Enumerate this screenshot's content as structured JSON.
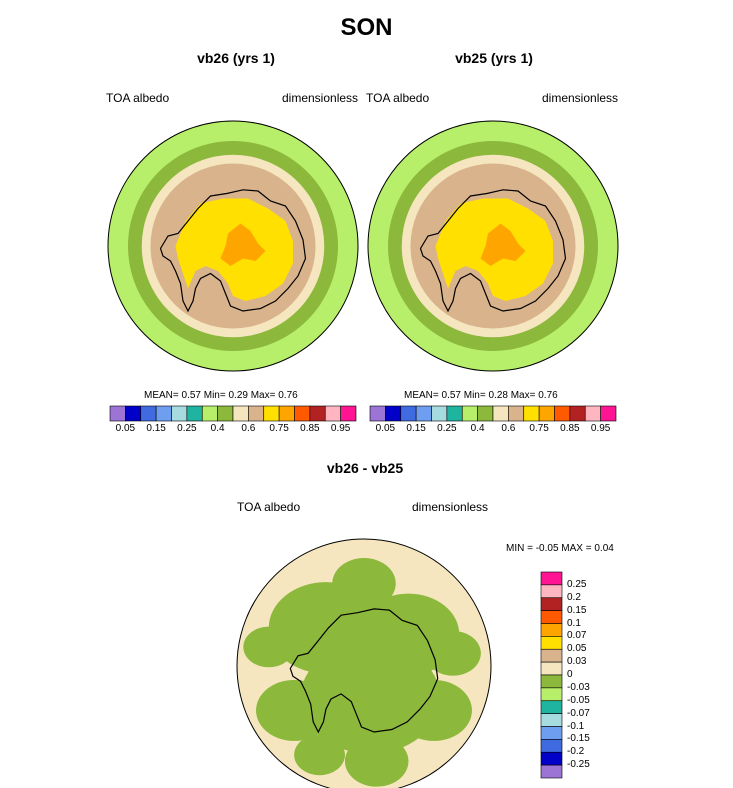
{
  "chart_data": [
    {
      "type": "heatmap",
      "title": "vb26 (yrs 1)",
      "left_label": "TOA albedo",
      "right_label": "dimensionless",
      "mean": "0.57",
      "min": "0.29",
      "max": "0.76",
      "stats_text": "MEAN=   0.57   Min=   0.29   Max=   0.76",
      "colorbar_ticks": [
        "0.05",
        "0.15",
        "0.25",
        "0.4",
        "0.6",
        "0.75",
        "0.85",
        "0.95"
      ]
    },
    {
      "type": "heatmap",
      "title": "vb25 (yrs 1)",
      "left_label": "TOA albedo",
      "right_label": "dimensionless",
      "mean": "0.57",
      "min": "0.28",
      "max": "0.76",
      "stats_text": "MEAN=   0.57   Min=   0.28   Max=   0.76",
      "colorbar_ticks": [
        "0.05",
        "0.15",
        "0.25",
        "0.4",
        "0.6",
        "0.75",
        "0.85",
        "0.95"
      ]
    },
    {
      "type": "heatmap",
      "title": "vb26 - vb25",
      "left_label": "TOA albedo",
      "right_label": "dimensionless",
      "min": "-0.05",
      "max": "0.04",
      "stats_text": "MIN =  -0.05 MAX =   0.04",
      "colorbar_ticks": [
        "0.25",
        "0.2",
        "0.15",
        "0.1",
        "0.07",
        "0.05",
        "0.03",
        "0",
        "-0.03",
        "-0.05",
        "-0.07",
        "-0.1",
        "-0.15",
        "-0.2",
        "-0.25"
      ]
    }
  ],
  "figure_title": "SON",
  "colors": {
    "abs_palette": [
      "#9c74d6",
      "#0000c8",
      "#3f6ae0",
      "#6e9ef0",
      "#a6dce0",
      "#1eb4a0",
      "#b8ef6a",
      "#8cb83c",
      "#f5e6bf",
      "#d9b38c",
      "#ffe000",
      "#ffa500",
      "#ff5a00",
      "#b22222",
      "#ffb6c1",
      "#ff1493"
    ],
    "diff_palette": [
      "#ff1493",
      "#ffb6c1",
      "#b22222",
      "#ff5a00",
      "#ffa500",
      "#ffe000",
      "#d9b38c",
      "#f5e6bf",
      "#8cb83c",
      "#b8ef6a",
      "#1eb4a0",
      "#a6dce0",
      "#6e9ef0",
      "#3f6ae0",
      "#0000c8",
      "#9c74d6"
    ],
    "ocean_outer": "#b8ef6a",
    "ocean_ring": "#8cb83c",
    "ice_light": "#f5e6bf",
    "ice_tan": "#d9b38c",
    "plateau": "#ffe000",
    "peak": "#ffa500",
    "diff_bg": "#8cb83c",
    "diff_patch": "#f5e6bf"
  }
}
